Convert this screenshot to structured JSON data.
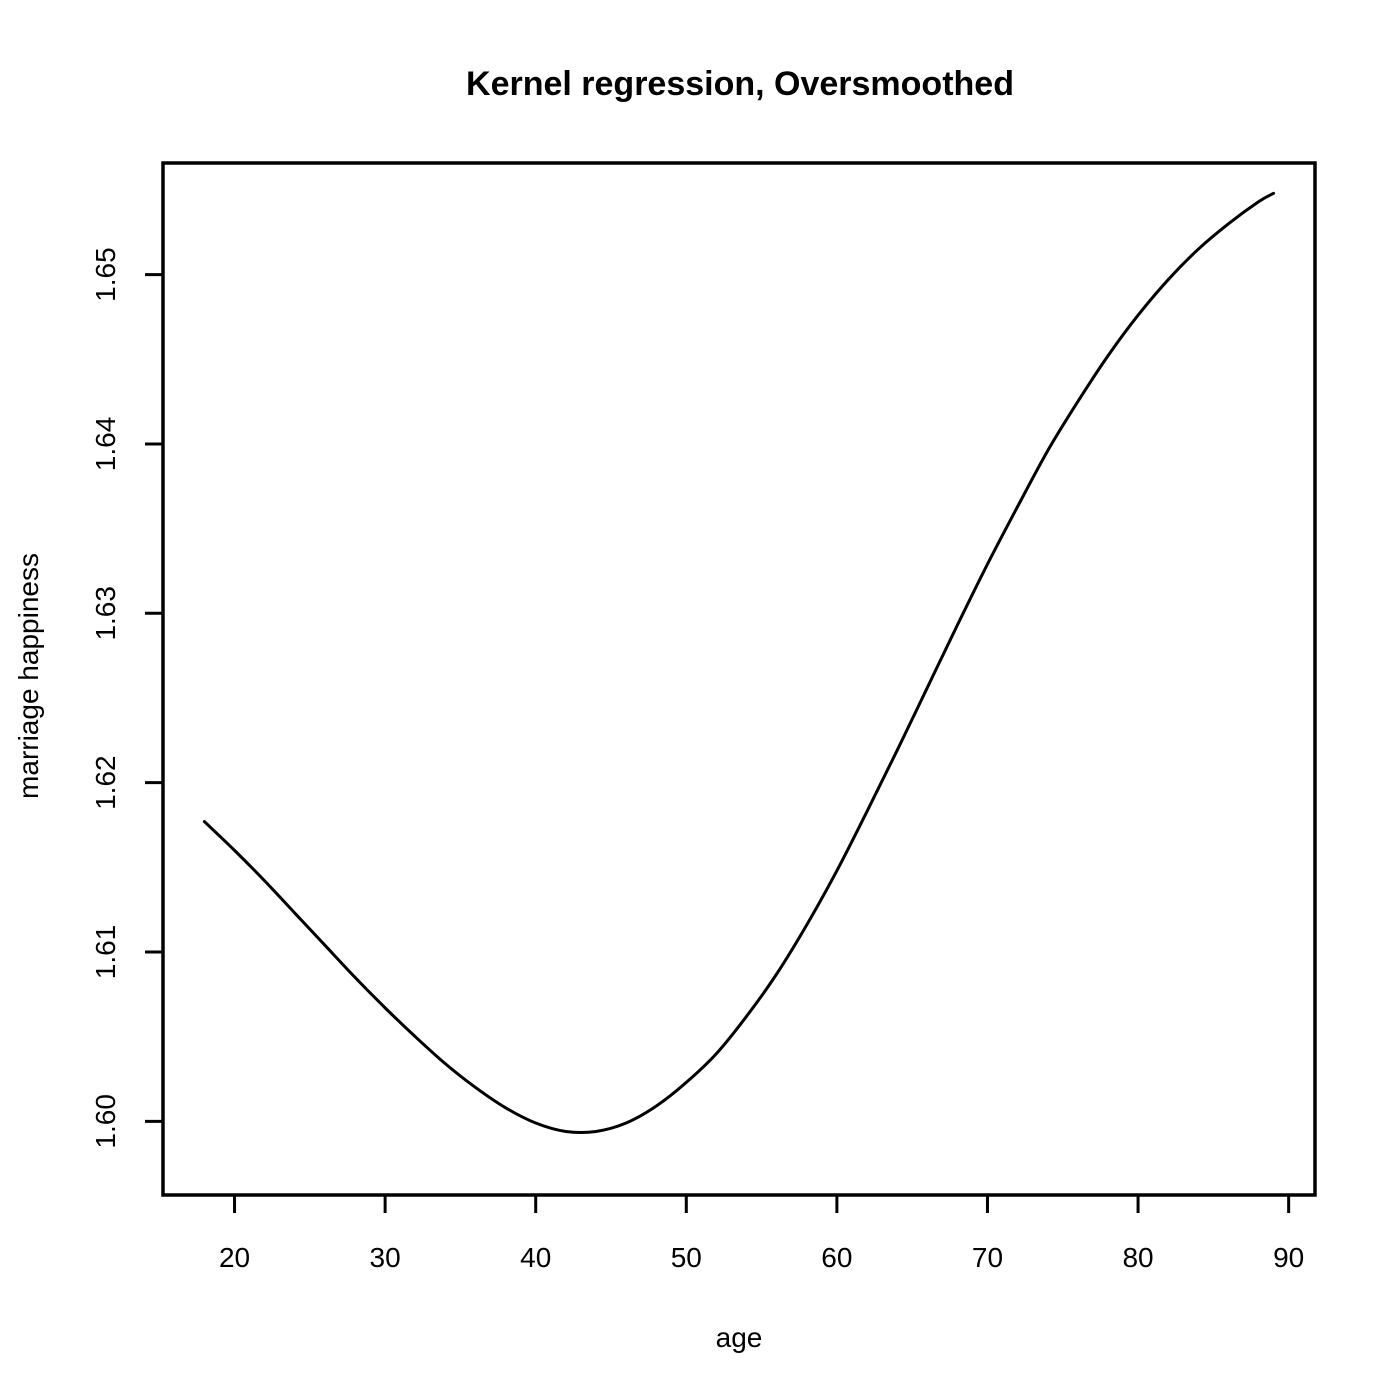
{
  "chart_data": {
    "type": "line",
    "title": "Kernel regression, Oversmoothed",
    "xlabel": "age",
    "ylabel": "marriage happiness",
    "xlim": [
      15.25,
      91.75
    ],
    "ylim": [
      1.59565,
      1.65659
    ],
    "xticks": [
      20,
      30,
      40,
      50,
      60,
      70,
      80,
      90
    ],
    "xtick_labels": [
      "20",
      "30",
      "40",
      "50",
      "60",
      "70",
      "80",
      "90"
    ],
    "yticks": [
      1.6,
      1.61,
      1.62,
      1.63,
      1.64,
      1.65
    ],
    "ytick_labels": [
      "1.60",
      "1.61",
      "1.62",
      "1.63",
      "1.64",
      "1.65"
    ],
    "grid": false,
    "legend": "none",
    "series": [
      {
        "x": [
          18,
          20,
          22,
          24,
          26,
          28,
          30,
          32,
          34,
          36,
          38,
          40,
          42,
          44,
          46,
          48,
          50,
          52,
          54,
          56,
          58,
          60,
          62,
          64,
          66,
          68,
          70,
          72,
          74,
          76,
          78,
          80,
          82,
          84,
          86,
          88,
          89
        ],
        "y": [
          1.6177,
          1.616,
          1.6142,
          1.6123,
          1.6104,
          1.6085,
          1.6067,
          1.605,
          1.6034,
          1.602,
          1.6008,
          1.5999,
          1.5994,
          1.5994,
          1.5999,
          1.6009,
          1.6023,
          1.604,
          1.6062,
          1.6087,
          1.6116,
          1.6148,
          1.6183,
          1.6219,
          1.6256,
          1.6293,
          1.6329,
          1.6363,
          1.6396,
          1.6425,
          1.6452,
          1.6476,
          1.6497,
          1.6515,
          1.653,
          1.6543,
          1.6548
        ]
      }
    ]
  }
}
